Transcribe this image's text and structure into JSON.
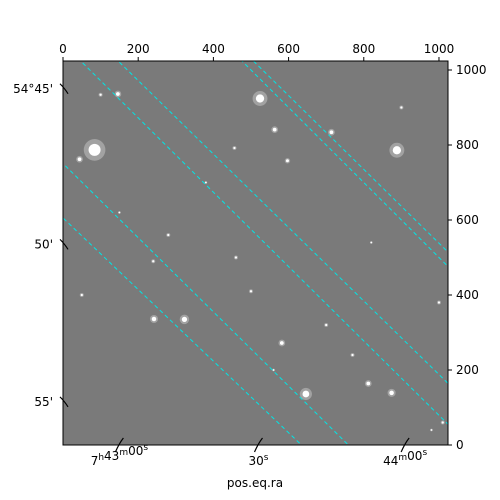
{
  "chart_data": {
    "type": "image",
    "xlabel": "pos.eq.ra",
    "ylabel": "",
    "pixel_axes": {
      "x_range": [
        0,
        1024
      ],
      "y_range": [
        0,
        1024
      ],
      "x_ticks": [
        0,
        200,
        400,
        600,
        800,
        1000
      ],
      "y_ticks": [
        0,
        200,
        400,
        600,
        800,
        1000
      ]
    },
    "ra_ticks": [
      {
        "px": 150,
        "label": "7h43m00s"
      },
      {
        "px": 520,
        "label": "30s"
      },
      {
        "px": 910,
        "label": "44m00s"
      }
    ],
    "dec_ticks": [
      {
        "px": 950,
        "label": "54°45'"
      },
      {
        "px": 535,
        "label": "50'"
      },
      {
        "px": 115,
        "label": "55'"
      }
    ],
    "grid": true,
    "grid_color": "#00e5e5",
    "background_color": "#7a7a7a",
    "frame_color": "#000000",
    "grid_lines": {
      "ra": [
        {
          "from": [
            -60,
            810
          ],
          "to": [
            850,
            -90
          ]
        },
        {
          "from": [
            110,
            1060
          ],
          "to": [
            1100,
            90
          ]
        },
        {
          "from": [
            480,
            1050
          ],
          "to": [
            1120,
            420
          ]
        }
      ],
      "dec": [
        {
          "from": [
            -80,
            1150
          ],
          "to": [
            1100,
            -20
          ]
        },
        {
          "from": [
            -120,
            720
          ],
          "to": [
            760,
            -120
          ]
        },
        {
          "from": [
            300,
            1200
          ],
          "to": [
            1150,
            350
          ]
        }
      ]
    },
    "stars": [
      {
        "x": 84,
        "y": 787,
        "r": 16
      },
      {
        "x": 44,
        "y": 762,
        "r": 5
      },
      {
        "x": 146,
        "y": 936,
        "r": 5
      },
      {
        "x": 524,
        "y": 924,
        "r": 11
      },
      {
        "x": 563,
        "y": 841,
        "r": 5
      },
      {
        "x": 714,
        "y": 834,
        "r": 5
      },
      {
        "x": 888,
        "y": 786,
        "r": 11
      },
      {
        "x": 597,
        "y": 758,
        "r": 4
      },
      {
        "x": 456,
        "y": 792,
        "r": 3
      },
      {
        "x": 242,
        "y": 336,
        "r": 6
      },
      {
        "x": 323,
        "y": 335,
        "r": 7
      },
      {
        "x": 582,
        "y": 272,
        "r": 5
      },
      {
        "x": 646,
        "y": 136,
        "r": 9
      },
      {
        "x": 874,
        "y": 139,
        "r": 6
      },
      {
        "x": 812,
        "y": 164,
        "r": 5
      },
      {
        "x": 100,
        "y": 934,
        "r": 3
      },
      {
        "x": 900,
        "y": 900,
        "r": 3
      },
      {
        "x": 280,
        "y": 560,
        "r": 3
      },
      {
        "x": 240,
        "y": 490,
        "r": 3
      },
      {
        "x": 50,
        "y": 400,
        "r": 3
      },
      {
        "x": 500,
        "y": 410,
        "r": 3
      },
      {
        "x": 700,
        "y": 320,
        "r": 3
      },
      {
        "x": 1000,
        "y": 380,
        "r": 3
      },
      {
        "x": 1010,
        "y": 60,
        "r": 3
      },
      {
        "x": 770,
        "y": 240,
        "r": 3
      },
      {
        "x": 460,
        "y": 500,
        "r": 3
      },
      {
        "x": 380,
        "y": 700,
        "r": 2
      },
      {
        "x": 150,
        "y": 620,
        "r": 2
      },
      {
        "x": 820,
        "y": 540,
        "r": 2
      },
      {
        "x": 560,
        "y": 200,
        "r": 2
      },
      {
        "x": 980,
        "y": 40,
        "r": 2
      }
    ]
  }
}
